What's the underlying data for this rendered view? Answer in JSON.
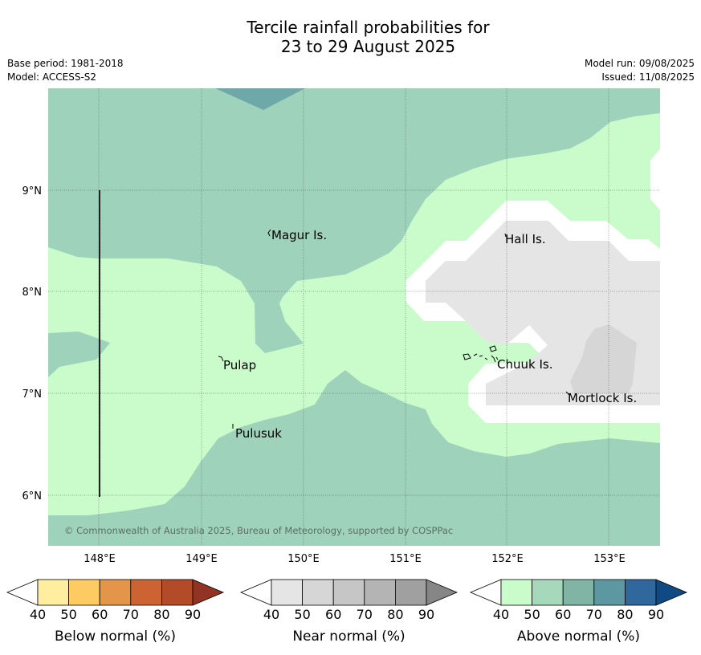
{
  "header": {
    "title_line1": "Tercile rainfall probabilities for",
    "title_line2": "23 to 29 August 2025",
    "base_period": "Base period: 1981-2018",
    "model": "Model: ACCESS-S2",
    "model_run": "Model run: 09/08/2025",
    "issued": "Issued: 11/08/2025"
  },
  "map": {
    "lat_labels": [
      "9°N",
      "8°N",
      "7°N",
      "6°N"
    ],
    "lon_labels": [
      "148°E",
      "149°E",
      "150°E",
      "151°E",
      "152°E",
      "153°E"
    ],
    "places": [
      "Magur Is.",
      "Hall Is.",
      "Pulap",
      "Chuuk Is.",
      "Mortlock Is.",
      "Pulusuk"
    ],
    "copyright": "© Commonwealth of Australia 2025, Bureau of Meteorology, supported by COSPPac",
    "colors": {
      "above_50": "#9fd2bb",
      "above_70": "#6fa8a8",
      "above_40": "#c9fcca",
      "near_40": "#e5e5e5",
      "near_50": "#d6d6d6",
      "below_normal_40": "#ffffff"
    }
  },
  "legends": [
    {
      "label": "Below normal (%)",
      "ticks": [
        "40",
        "50",
        "60",
        "70",
        "80",
        "90"
      ],
      "colors": [
        "#ffffff",
        "#ffeda0",
        "#fecb63",
        "#e3964a",
        "#cd6333",
        "#b34a28",
        "#923324"
      ]
    },
    {
      "label": "Near normal (%)",
      "ticks": [
        "40",
        "50",
        "60",
        "70",
        "80",
        "90"
      ],
      "colors": [
        "#ffffff",
        "#e5e5e5",
        "#d6d6d6",
        "#c6c6c6",
        "#b4b4b4",
        "#a0a0a0",
        "#868686"
      ]
    },
    {
      "label": "Above normal (%)",
      "ticks": [
        "40",
        "50",
        "60",
        "70",
        "80",
        "90"
      ],
      "colors": [
        "#ffffff",
        "#c9fcca",
        "#a6d8bb",
        "#80b5a6",
        "#5c97a2",
        "#30679c",
        "#0f4b82"
      ]
    }
  ]
}
